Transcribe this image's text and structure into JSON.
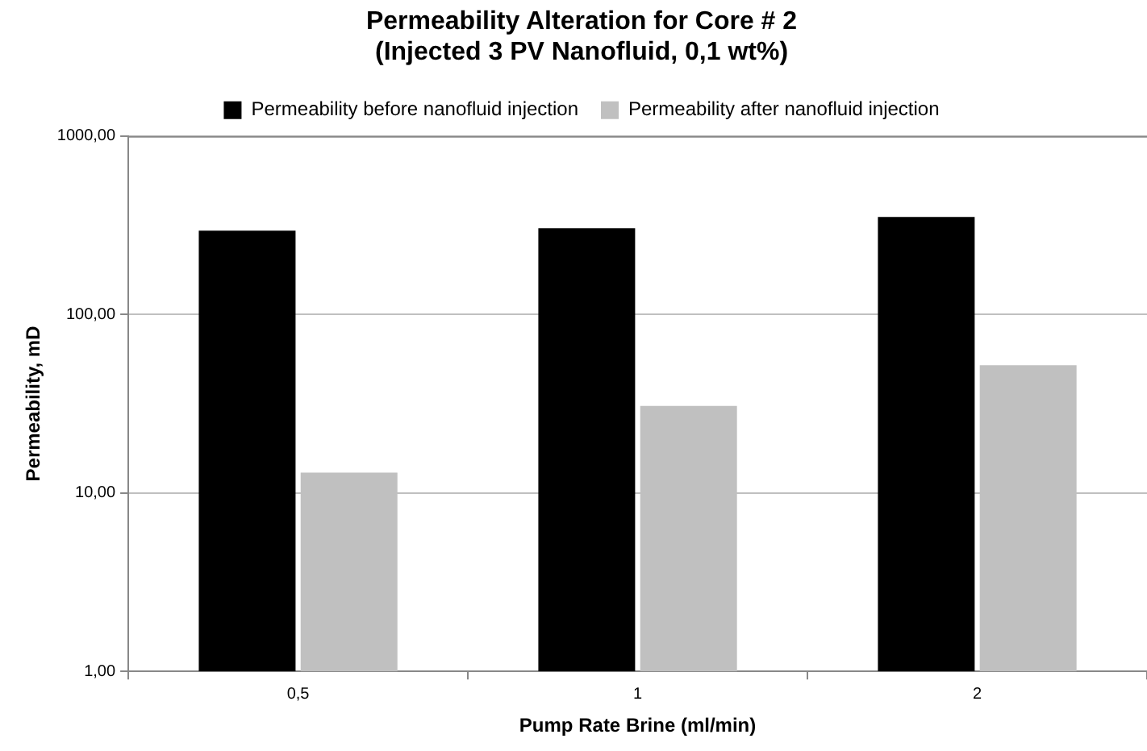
{
  "chart_data": {
    "type": "bar",
    "title": "Permeability Alteration for Core # 2\n(Injected 3 PV Nanofluid, 0,1 wt%)",
    "xlabel": "Pump Rate Brine (ml/min)",
    "ylabel": "Permeability, mD",
    "categories": [
      "0,5",
      "1",
      "2"
    ],
    "series": [
      {
        "name": "Permeability before nanofluid injection",
        "color": "#000000",
        "values": [
          295,
          304,
          352
        ]
      },
      {
        "name": "Permeability after nanofluid injection",
        "color": "#c0c0c0",
        "values": [
          13,
          30.7,
          52
        ]
      }
    ],
    "log": "y",
    "ylim": [
      1,
      1000
    ],
    "yticks": [
      {
        "value": 1,
        "label": "1,00"
      },
      {
        "value": 10,
        "label": "10,00"
      },
      {
        "value": 100,
        "label": "100,00"
      },
      {
        "value": 1000,
        "label": "1000,00"
      }
    ],
    "grid": "y",
    "legend": "top"
  }
}
